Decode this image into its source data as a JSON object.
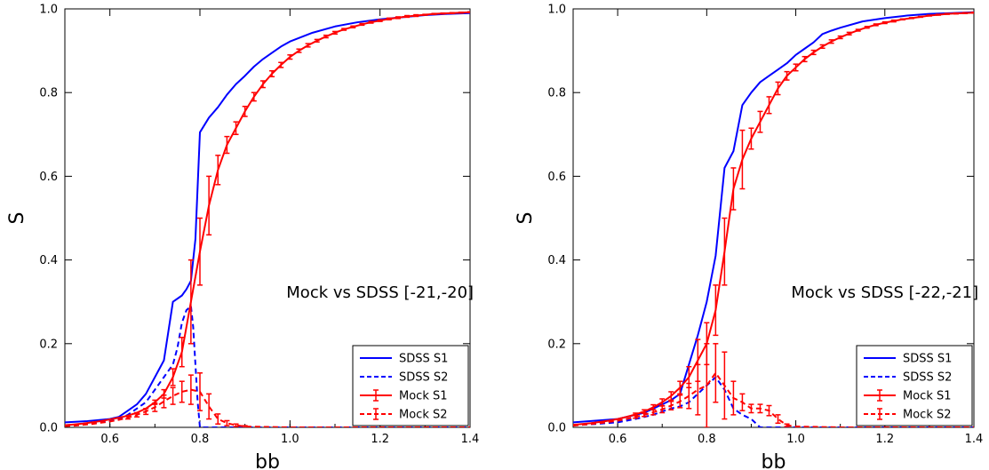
{
  "colors": {
    "sdss": "#0000ff",
    "mock": "#ff0000",
    "axis": "#000000"
  },
  "chart_data": [
    {
      "type": "line",
      "annotation": "Mock vs SDSS [-21,-20]",
      "xlabel": "bb",
      "ylabel": "S",
      "xlim": [
        0.5,
        1.4
      ],
      "ylim": [
        0.0,
        1.0
      ],
      "xticks": [
        "0.6",
        "0.8",
        "1.0",
        "1.2",
        "1.4"
      ],
      "yticks": [
        "0.0",
        "0.2",
        "0.4",
        "0.6",
        "0.8",
        "1.0"
      ],
      "legend_position": "lower-right",
      "series": [
        {
          "name": "SDSS S1",
          "color": "#0000ff",
          "dash": "solid",
          "x": [
            0.5,
            0.55,
            0.6,
            0.62,
            0.64,
            0.66,
            0.68,
            0.7,
            0.72,
            0.74,
            0.76,
            0.77,
            0.78,
            0.79,
            0.8,
            0.82,
            0.84,
            0.86,
            0.88,
            0.9,
            0.92,
            0.94,
            0.96,
            0.98,
            1.0,
            1.05,
            1.1,
            1.15,
            1.2,
            1.25,
            1.3,
            1.35,
            1.4
          ],
          "y": [
            0.012,
            0.015,
            0.02,
            0.025,
            0.04,
            0.055,
            0.08,
            0.12,
            0.16,
            0.3,
            0.315,
            0.33,
            0.35,
            0.45,
            0.705,
            0.74,
            0.765,
            0.795,
            0.82,
            0.84,
            0.862,
            0.88,
            0.895,
            0.91,
            0.922,
            0.943,
            0.958,
            0.968,
            0.975,
            0.98,
            0.985,
            0.988,
            0.99
          ]
        },
        {
          "name": "SDSS S2",
          "color": "#0000ff",
          "dash": "dashed",
          "x": [
            0.5,
            0.55,
            0.6,
            0.62,
            0.64,
            0.66,
            0.68,
            0.7,
            0.72,
            0.74,
            0.75,
            0.76,
            0.77,
            0.78,
            0.785,
            0.79,
            0.795,
            0.8,
            0.81,
            0.82,
            0.85,
            0.9,
            0.95,
            1.0,
            1.2,
            1.4
          ],
          "y": [
            0.005,
            0.008,
            0.015,
            0.02,
            0.03,
            0.045,
            0.06,
            0.09,
            0.12,
            0.15,
            0.19,
            0.25,
            0.28,
            0.29,
            0.24,
            0.15,
            0.06,
            0.0,
            0.0,
            0.0,
            0.0,
            0.0,
            0.0,
            0.0,
            0.0,
            0.0
          ]
        },
        {
          "name": "Mock S1",
          "color": "#ff0000",
          "dash": "solid",
          "x": [
            0.5,
            0.52,
            0.54,
            0.56,
            0.58,
            0.6,
            0.62,
            0.64,
            0.66,
            0.68,
            0.7,
            0.72,
            0.74,
            0.76,
            0.78,
            0.8,
            0.82,
            0.84,
            0.86,
            0.88,
            0.9,
            0.92,
            0.94,
            0.96,
            0.98,
            1.0,
            1.02,
            1.04,
            1.06,
            1.08,
            1.1,
            1.12,
            1.14,
            1.16,
            1.18,
            1.2,
            1.22,
            1.24,
            1.26,
            1.28,
            1.3,
            1.32,
            1.34,
            1.36,
            1.38,
            1.4
          ],
          "y": [
            0.005,
            0.007,
            0.009,
            0.012,
            0.015,
            0.019,
            0.023,
            0.028,
            0.035,
            0.045,
            0.06,
            0.08,
            0.12,
            0.18,
            0.3,
            0.42,
            0.53,
            0.615,
            0.675,
            0.715,
            0.755,
            0.79,
            0.82,
            0.845,
            0.866,
            0.885,
            0.9,
            0.913,
            0.924,
            0.934,
            0.943,
            0.951,
            0.957,
            0.963,
            0.968,
            0.972,
            0.976,
            0.979,
            0.982,
            0.984,
            0.986,
            0.988,
            0.989,
            0.99,
            0.991,
            0.992
          ],
          "err": [
            0,
            0,
            0,
            0,
            0,
            0,
            0,
            0,
            0,
            0,
            0.005,
            0.01,
            0.02,
            0.035,
            0.1,
            0.08,
            0.07,
            0.035,
            0.02,
            0.015,
            0.012,
            0.01,
            0.008,
            0.007,
            0.006,
            0.005,
            0.004,
            0.004,
            0.003,
            0.003,
            0.003,
            0.002,
            0.002,
            0.002,
            0.002,
            0.002,
            0.002,
            0.002,
            0.002,
            0.002,
            0.001,
            0.001,
            0.001,
            0.001,
            0.001,
            0.001
          ]
        },
        {
          "name": "Mock S2",
          "color": "#ff0000",
          "dash": "dashed",
          "x": [
            0.5,
            0.52,
            0.54,
            0.56,
            0.58,
            0.6,
            0.62,
            0.64,
            0.66,
            0.68,
            0.7,
            0.72,
            0.74,
            0.76,
            0.78,
            0.8,
            0.82,
            0.84,
            0.86,
            0.88,
            0.9,
            0.95,
            1.0,
            1.1,
            1.2,
            1.4
          ],
          "y": [
            0.003,
            0.004,
            0.006,
            0.008,
            0.011,
            0.014,
            0.018,
            0.023,
            0.03,
            0.038,
            0.048,
            0.062,
            0.075,
            0.085,
            0.09,
            0.085,
            0.05,
            0.02,
            0.01,
            0.005,
            0.002,
            0.001,
            0.0,
            0.0,
            0.0,
            0.0
          ],
          "err": [
            0,
            0,
            0,
            0,
            0,
            0,
            0,
            0.003,
            0.005,
            0.007,
            0.01,
            0.015,
            0.02,
            0.025,
            0.035,
            0.045,
            0.03,
            0.012,
            0.006,
            0.003,
            0.002,
            0,
            0,
            0,
            0,
            0
          ]
        }
      ]
    },
    {
      "type": "line",
      "annotation": "Mock vs SDSS [-22,-21]",
      "xlabel": "bb",
      "ylabel": "S",
      "xlim": [
        0.5,
        1.4
      ],
      "ylim": [
        0.0,
        1.0
      ],
      "xticks": [
        "0.6",
        "0.8",
        "1.0",
        "1.2",
        "1.4"
      ],
      "yticks": [
        "0.0",
        "0.2",
        "0.4",
        "0.6",
        "0.8",
        "1.0"
      ],
      "legend_position": "lower-right",
      "series": [
        {
          "name": "SDSS S1",
          "color": "#0000ff",
          "dash": "solid",
          "x": [
            0.5,
            0.55,
            0.6,
            0.62,
            0.64,
            0.66,
            0.68,
            0.7,
            0.72,
            0.74,
            0.76,
            0.78,
            0.8,
            0.82,
            0.84,
            0.86,
            0.88,
            0.9,
            0.92,
            0.94,
            0.96,
            0.98,
            1.0,
            1.02,
            1.04,
            1.06,
            1.08,
            1.1,
            1.15,
            1.2,
            1.25,
            1.3,
            1.35,
            1.4
          ],
          "y": [
            0.012,
            0.016,
            0.02,
            0.025,
            0.03,
            0.035,
            0.045,
            0.055,
            0.065,
            0.08,
            0.15,
            0.22,
            0.3,
            0.41,
            0.62,
            0.66,
            0.77,
            0.8,
            0.825,
            0.84,
            0.855,
            0.87,
            0.89,
            0.905,
            0.92,
            0.94,
            0.948,
            0.955,
            0.97,
            0.978,
            0.984,
            0.988,
            0.99,
            0.992
          ]
        },
        {
          "name": "SDSS S2",
          "color": "#0000ff",
          "dash": "dashed",
          "x": [
            0.5,
            0.55,
            0.6,
            0.62,
            0.64,
            0.66,
            0.68,
            0.7,
            0.72,
            0.74,
            0.76,
            0.78,
            0.8,
            0.82,
            0.84,
            0.86,
            0.88,
            0.9,
            0.92,
            1.0,
            1.2,
            1.4
          ],
          "y": [
            0.005,
            0.008,
            0.012,
            0.016,
            0.02,
            0.025,
            0.03,
            0.038,
            0.045,
            0.05,
            0.06,
            0.08,
            0.1,
            0.12,
            0.09,
            0.045,
            0.03,
            0.02,
            0.0,
            0.0,
            0.0,
            0.0
          ]
        },
        {
          "name": "Mock S1",
          "color": "#ff0000",
          "dash": "solid",
          "x": [
            0.5,
            0.52,
            0.54,
            0.56,
            0.58,
            0.6,
            0.62,
            0.64,
            0.66,
            0.68,
            0.7,
            0.72,
            0.74,
            0.76,
            0.78,
            0.8,
            0.82,
            0.84,
            0.86,
            0.88,
            0.9,
            0.92,
            0.94,
            0.96,
            0.98,
            1.0,
            1.02,
            1.04,
            1.06,
            1.08,
            1.1,
            1.12,
            1.14,
            1.16,
            1.18,
            1.2,
            1.22,
            1.24,
            1.26,
            1.28,
            1.3,
            1.32,
            1.34,
            1.36,
            1.38,
            1.4
          ],
          "y": [
            0.006,
            0.008,
            0.01,
            0.013,
            0.016,
            0.02,
            0.025,
            0.031,
            0.038,
            0.048,
            0.06,
            0.075,
            0.095,
            0.12,
            0.16,
            0.2,
            0.28,
            0.42,
            0.57,
            0.64,
            0.69,
            0.73,
            0.77,
            0.81,
            0.84,
            0.86,
            0.88,
            0.896,
            0.91,
            0.922,
            0.932,
            0.941,
            0.949,
            0.956,
            0.962,
            0.967,
            0.971,
            0.975,
            0.978,
            0.981,
            0.984,
            0.986,
            0.988,
            0.989,
            0.99,
            0.991
          ],
          "err": [
            0,
            0,
            0,
            0,
            0,
            0,
            0,
            0.003,
            0.004,
            0.006,
            0.008,
            0.01,
            0.015,
            0.025,
            0.05,
            0.05,
            0.06,
            0.08,
            0.05,
            0.07,
            0.025,
            0.025,
            0.02,
            0.015,
            0.01,
            0.008,
            0.006,
            0.005,
            0.004,
            0.004,
            0.003,
            0.003,
            0.002,
            0.002,
            0.002,
            0.002,
            0.002,
            0.001,
            0.001,
            0.001,
            0.001,
            0.001,
            0.001,
            0.001,
            0.001,
            0.001
          ]
        },
        {
          "name": "Mock S2",
          "color": "#ff0000",
          "dash": "dashed",
          "x": [
            0.5,
            0.52,
            0.54,
            0.56,
            0.58,
            0.6,
            0.62,
            0.64,
            0.66,
            0.68,
            0.7,
            0.72,
            0.74,
            0.76,
            0.78,
            0.8,
            0.82,
            0.84,
            0.86,
            0.88,
            0.9,
            0.92,
            0.94,
            0.96,
            0.98,
            1.0,
            1.1,
            1.2,
            1.4
          ],
          "y": [
            0.004,
            0.006,
            0.008,
            0.01,
            0.013,
            0.016,
            0.02,
            0.025,
            0.03,
            0.036,
            0.043,
            0.052,
            0.062,
            0.075,
            0.09,
            0.1,
            0.13,
            0.1,
            0.07,
            0.06,
            0.045,
            0.045,
            0.04,
            0.02,
            0.005,
            0.002,
            0.0,
            0.0,
            0.0
          ],
          "err": [
            0,
            0,
            0,
            0,
            0,
            0,
            0,
            0.003,
            0.004,
            0.006,
            0.008,
            0.01,
            0.015,
            0.03,
            0.06,
            0.1,
            0.07,
            0.08,
            0.04,
            0.02,
            0.01,
            0.01,
            0.012,
            0.01,
            0.003,
            0,
            0,
            0,
            0
          ]
        }
      ]
    }
  ]
}
